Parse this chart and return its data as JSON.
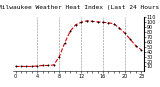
{
  "title": "Milwaukee Weather Heat Index (Last 24 Hours)",
  "x": [
    0,
    1,
    2,
    3,
    4,
    5,
    6,
    7,
    8,
    9,
    10,
    11,
    12,
    13,
    14,
    15,
    16,
    17,
    18,
    19,
    20,
    21,
    22,
    23
  ],
  "y": [
    10,
    10,
    10,
    10,
    11,
    12,
    12,
    13,
    30,
    58,
    82,
    95,
    100,
    103,
    102,
    101,
    100,
    99,
    97,
    88,
    78,
    65,
    52,
    44
  ],
  "line_color": "#dd0000",
  "marker_color": "#000000",
  "bg_color": "#ffffff",
  "plot_bg_color": "#ffffff",
  "grid_color": "#888888",
  "title_color": "#000000",
  "tick_color": "#000000",
  "ylim": [
    0,
    110
  ],
  "xlim": [
    -0.5,
    23.5
  ],
  "ytick_vals": [
    10,
    20,
    30,
    40,
    50,
    60,
    70,
    80,
    90,
    100,
    110
  ],
  "xtick_positions": [
    0,
    1,
    2,
    3,
    4,
    5,
    6,
    7,
    8,
    9,
    10,
    11,
    12,
    13,
    14,
    15,
    16,
    17,
    18,
    19,
    20,
    21,
    22,
    23
  ],
  "xtick_labels": [
    "0",
    "",
    "",
    "",
    "4",
    "",
    "",
    "",
    "8",
    "",
    "",
    "",
    "12",
    "",
    "",
    "",
    "16",
    "",
    "",
    "",
    "20",
    "",
    "",
    "23"
  ],
  "title_fontsize": 4.5,
  "tick_fontsize": 3.5,
  "line_width": 0.8,
  "marker_size": 2.0,
  "vgrid_positions": [
    4,
    8,
    12,
    16,
    20
  ],
  "left_label_area": "#c8c8c8"
}
